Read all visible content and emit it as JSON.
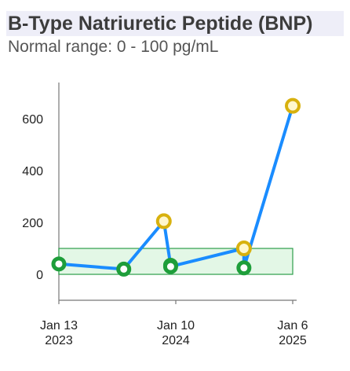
{
  "header": {
    "title": "B-Type Natriuretic Peptide (BNP)",
    "subtitle": "Normal range: 0 - 100 pg/mL"
  },
  "colors": {
    "line": "#1a8cff",
    "normal_band_fill": "#e3f7e6",
    "normal_band_stroke": "#2e9e4b",
    "normal_marker": "#1e9e3a",
    "abnormal_marker": "#d8b10e"
  },
  "chart_data": {
    "type": "line",
    "title": "B-Type Natriuretic Peptide (BNP)",
    "ylim": [
      -100,
      740
    ],
    "yticks": [
      0,
      200,
      400,
      600
    ],
    "xlim": [
      "2023-01-13",
      "2025-01-06"
    ],
    "xticks": [
      {
        "date": "2023-01-13",
        "line1": "Jan 13",
        "line2": "2023"
      },
      {
        "date": "2024-01-10",
        "line1": "Jan 10",
        "line2": "2024"
      },
      {
        "date": "2025-01-06",
        "line1": "Jan 6",
        "line2": "2025"
      }
    ],
    "normal_range": [
      0,
      100
    ],
    "series": [
      {
        "points": [
          {
            "x": "2023-01-13",
            "y": 40,
            "status": "normal"
          },
          {
            "x": "2023-08-02",
            "y": 20,
            "status": "normal"
          },
          {
            "x": "2023-12-04",
            "y": 205,
            "status": "high"
          },
          {
            "x": "2023-12-25",
            "y": 35,
            "status": "normal"
          },
          {
            "x": "2023-12-25",
            "y": 30,
            "status": "normal"
          },
          {
            "x": "2024-08-08",
            "y": 100,
            "status": "high"
          },
          {
            "x": "2024-08-08",
            "y": 25,
            "status": "normal"
          },
          {
            "x": "2025-01-06",
            "y": 650,
            "status": "high"
          }
        ]
      }
    ]
  }
}
